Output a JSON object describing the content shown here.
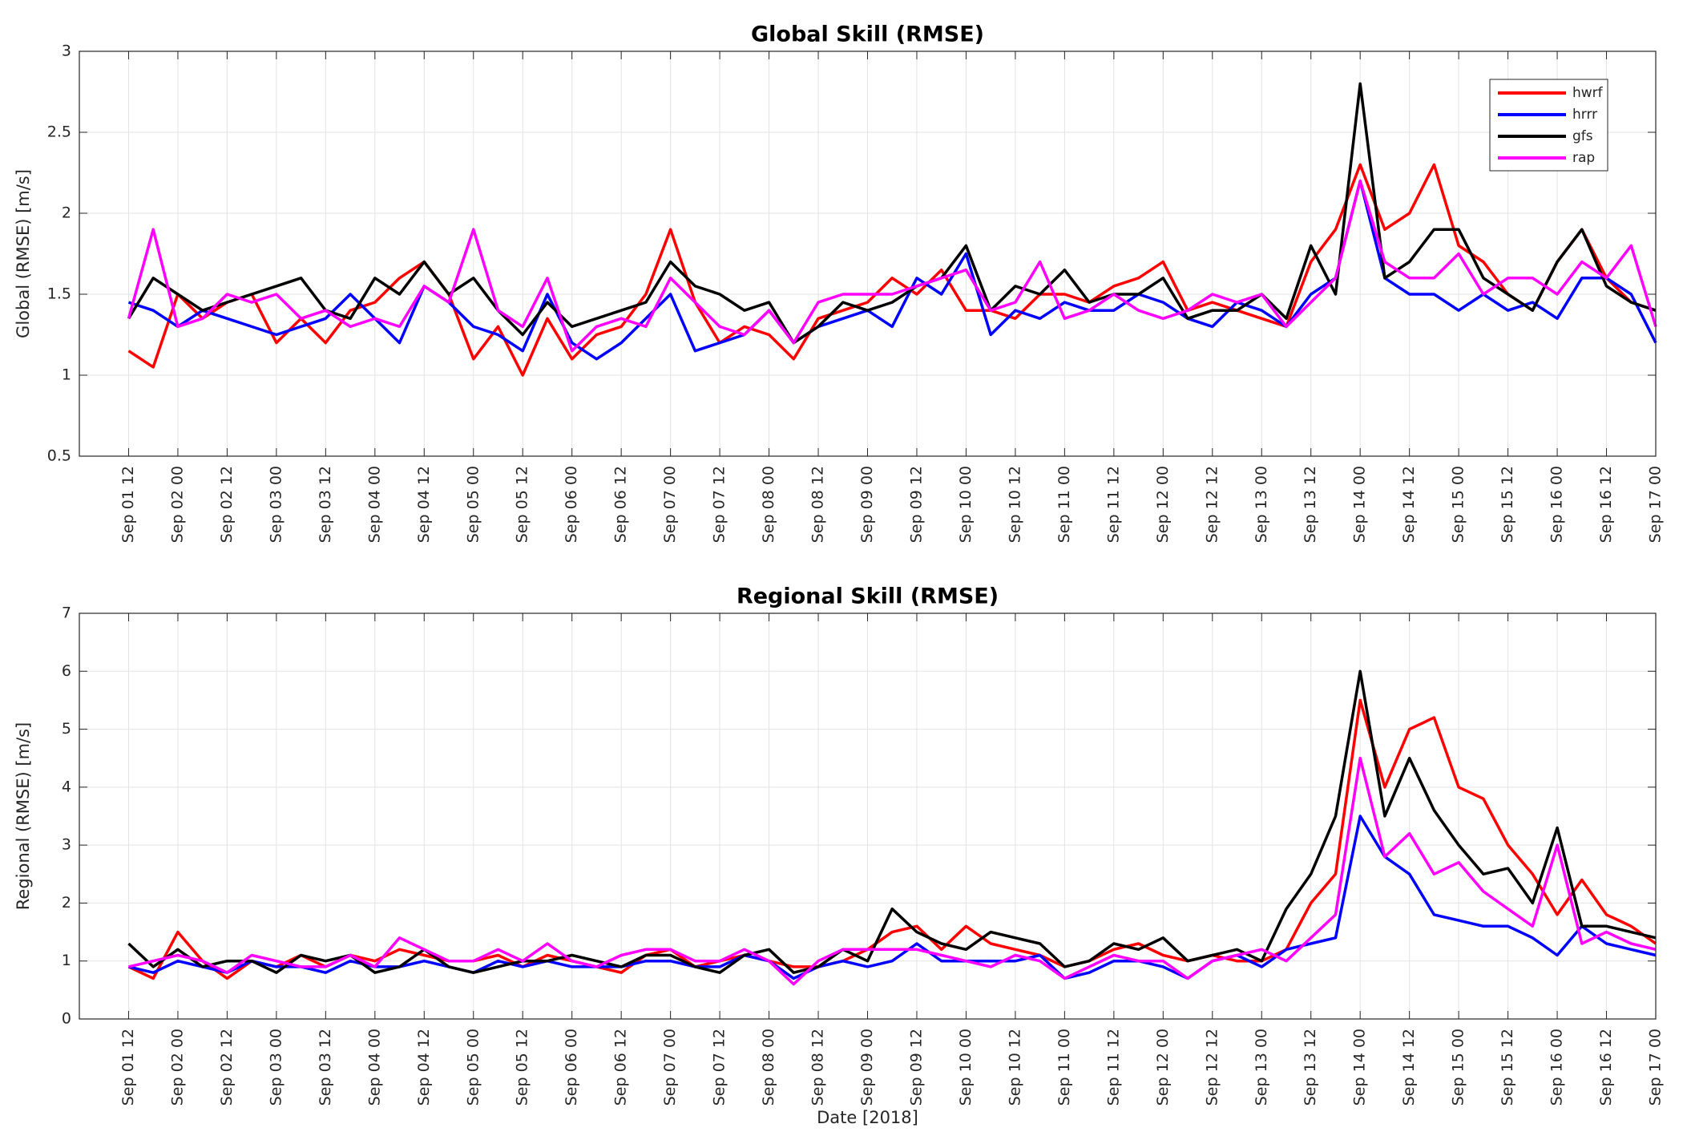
{
  "chart_data": [
    {
      "type": "line",
      "title": "Global Skill (RMSE)",
      "ylabel": "Global (RMSE) [m/s]",
      "x": [
        "2018-09-01T12",
        "2018-09-01T18",
        "2018-09-02T00",
        "2018-09-02T06",
        "2018-09-02T12",
        "2018-09-02T18",
        "2018-09-03T00",
        "2018-09-03T06",
        "2018-09-03T12",
        "2018-09-03T18",
        "2018-09-04T00",
        "2018-09-04T06",
        "2018-09-04T12",
        "2018-09-04T18",
        "2018-09-05T00",
        "2018-09-05T06",
        "2018-09-05T12",
        "2018-09-05T18",
        "2018-09-06T00",
        "2018-09-06T06",
        "2018-09-06T12",
        "2018-09-06T18",
        "2018-09-07T00",
        "2018-09-07T06",
        "2018-09-07T12",
        "2018-09-07T18",
        "2018-09-08T00",
        "2018-09-08T06",
        "2018-09-08T12",
        "2018-09-08T18",
        "2018-09-09T00",
        "2018-09-09T06",
        "2018-09-09T12",
        "2018-09-09T18",
        "2018-09-10T00",
        "2018-09-10T06",
        "2018-09-10T12",
        "2018-09-10T18",
        "2018-09-11T00",
        "2018-09-11T06",
        "2018-09-11T12",
        "2018-09-11T18",
        "2018-09-12T00",
        "2018-09-12T06",
        "2018-09-12T12",
        "2018-09-12T18",
        "2018-09-13T00",
        "2018-09-13T06",
        "2018-09-13T12",
        "2018-09-13T18",
        "2018-09-14T00",
        "2018-09-14T06",
        "2018-09-14T12",
        "2018-09-14T18",
        "2018-09-15T00",
        "2018-09-15T06",
        "2018-09-15T12",
        "2018-09-15T18",
        "2018-09-16T00",
        "2018-09-16T06",
        "2018-09-16T12",
        "2018-09-16T18",
        "2018-09-17T00"
      ],
      "series": [
        {
          "name": "hwrf",
          "color": "#ff0000",
          "values": [
            1.15,
            1.05,
            1.5,
            1.35,
            1.45,
            1.5,
            1.2,
            1.35,
            1.2,
            1.4,
            1.45,
            1.6,
            1.7,
            1.5,
            1.1,
            1.3,
            1.0,
            1.35,
            1.1,
            1.25,
            1.3,
            1.5,
            1.9,
            1.45,
            1.2,
            1.3,
            1.25,
            1.1,
            1.35,
            1.4,
            1.45,
            1.6,
            1.5,
            1.65,
            1.4,
            1.4,
            1.35,
            1.5,
            1.5,
            1.45,
            1.55,
            1.6,
            1.7,
            1.4,
            1.45,
            1.4,
            1.35,
            1.3,
            1.7,
            1.9,
            2.3,
            1.9,
            2.0,
            2.3,
            1.8,
            1.7,
            1.5,
            1.4,
            1.7,
            1.9,
            1.6,
            1.45,
            1.4
          ]
        },
        {
          "name": "hrrr",
          "color": "#0000ff",
          "values": [
            1.45,
            1.4,
            1.3,
            1.4,
            1.35,
            1.3,
            1.25,
            1.3,
            1.35,
            1.5,
            1.35,
            1.2,
            1.55,
            1.45,
            1.3,
            1.25,
            1.15,
            1.5,
            1.2,
            1.1,
            1.2,
            1.35,
            1.5,
            1.15,
            1.2,
            1.25,
            1.4,
            1.2,
            1.3,
            1.35,
            1.4,
            1.3,
            1.6,
            1.5,
            1.75,
            1.25,
            1.4,
            1.35,
            1.45,
            1.4,
            1.4,
            1.5,
            1.45,
            1.35,
            1.3,
            1.45,
            1.4,
            1.3,
            1.5,
            1.6,
            2.2,
            1.6,
            1.5,
            1.5,
            1.4,
            1.5,
            1.4,
            1.45,
            1.35,
            1.6,
            1.6,
            1.5,
            1.2
          ]
        },
        {
          "name": "gfs",
          "color": "#000000",
          "values": [
            1.35,
            1.6,
            1.5,
            1.4,
            1.45,
            1.5,
            1.55,
            1.6,
            1.4,
            1.35,
            1.6,
            1.5,
            1.7,
            1.5,
            1.6,
            1.4,
            1.25,
            1.45,
            1.3,
            1.35,
            1.4,
            1.45,
            1.7,
            1.55,
            1.5,
            1.4,
            1.45,
            1.2,
            1.3,
            1.45,
            1.4,
            1.45,
            1.55,
            1.6,
            1.8,
            1.4,
            1.55,
            1.5,
            1.65,
            1.45,
            1.5,
            1.5,
            1.6,
            1.35,
            1.4,
            1.4,
            1.5,
            1.35,
            1.8,
            1.5,
            2.8,
            1.6,
            1.7,
            1.9,
            1.9,
            1.6,
            1.5,
            1.4,
            1.7,
            1.9,
            1.55,
            1.45,
            1.4
          ]
        },
        {
          "name": "rap",
          "color": "#ff00ff",
          "values": [
            1.35,
            1.9,
            1.3,
            1.35,
            1.5,
            1.45,
            1.5,
            1.35,
            1.4,
            1.3,
            1.35,
            1.3,
            1.55,
            1.45,
            1.9,
            1.4,
            1.3,
            1.6,
            1.15,
            1.3,
            1.35,
            1.3,
            1.6,
            1.45,
            1.3,
            1.25,
            1.4,
            1.2,
            1.45,
            1.5,
            1.5,
            1.5,
            1.55,
            1.6,
            1.65,
            1.4,
            1.45,
            1.7,
            1.35,
            1.4,
            1.5,
            1.4,
            1.35,
            1.4,
            1.5,
            1.45,
            1.5,
            1.3,
            1.45,
            1.6,
            2.2,
            1.7,
            1.6,
            1.6,
            1.75,
            1.5,
            1.6,
            1.6,
            1.5,
            1.7,
            1.6,
            1.8,
            1.3
          ]
        }
      ],
      "xlim": [
        "2018-09-01T00",
        "2018-09-17T00"
      ],
      "xticks": [
        {
          "value": "2018-09-01T12",
          "label": "Sep 01 12"
        },
        {
          "value": "2018-09-02T00",
          "label": "Sep 02 00"
        },
        {
          "value": "2018-09-02T12",
          "label": "Sep 02 12"
        },
        {
          "value": "2018-09-03T00",
          "label": "Sep 03 00"
        },
        {
          "value": "2018-09-03T12",
          "label": "Sep 03 12"
        },
        {
          "value": "2018-09-04T00",
          "label": "Sep 04 00"
        },
        {
          "value": "2018-09-04T12",
          "label": "Sep 04 12"
        },
        {
          "value": "2018-09-05T00",
          "label": "Sep 05 00"
        },
        {
          "value": "2018-09-05T12",
          "label": "Sep 05 12"
        },
        {
          "value": "2018-09-06T00",
          "label": "Sep 06 00"
        },
        {
          "value": "2018-09-06T12",
          "label": "Sep 06 12"
        },
        {
          "value": "2018-09-07T00",
          "label": "Sep 07 00"
        },
        {
          "value": "2018-09-07T12",
          "label": "Sep 07 12"
        },
        {
          "value": "2018-09-08T00",
          "label": "Sep 08 00"
        },
        {
          "value": "2018-09-08T12",
          "label": "Sep 08 12"
        },
        {
          "value": "2018-09-09T00",
          "label": "Sep 09 00"
        },
        {
          "value": "2018-09-09T12",
          "label": "Sep 09 12"
        },
        {
          "value": "2018-09-10T00",
          "label": "Sep 10 00"
        },
        {
          "value": "2018-09-10T12",
          "label": "Sep 10 12"
        },
        {
          "value": "2018-09-11T00",
          "label": "Sep 11 00"
        },
        {
          "value": "2018-09-11T12",
          "label": "Sep 11 12"
        },
        {
          "value": "2018-09-12T00",
          "label": "Sep 12 00"
        },
        {
          "value": "2018-09-12T12",
          "label": "Sep 12 12"
        },
        {
          "value": "2018-09-13T00",
          "label": "Sep 13 00"
        },
        {
          "value": "2018-09-13T12",
          "label": "Sep 13 12"
        },
        {
          "value": "2018-09-14T00",
          "label": "Sep 14 00"
        },
        {
          "value": "2018-09-14T12",
          "label": "Sep 14 12"
        },
        {
          "value": "2018-09-15T00",
          "label": "Sep 15 00"
        },
        {
          "value": "2018-09-15T12",
          "label": "Sep 15 12"
        },
        {
          "value": "2018-09-16T00",
          "label": "Sep 16 00"
        },
        {
          "value": "2018-09-16T12",
          "label": "Sep 16 12"
        },
        {
          "value": "2018-09-17T00",
          "label": "Sep 17 00"
        }
      ],
      "ylim": [
        0.5,
        3
      ],
      "yticks": [
        0.5,
        1,
        1.5,
        2,
        2.5,
        3
      ],
      "grid": true,
      "legend": "upper right"
    },
    {
      "type": "line",
      "title": "Regional Skill (RMSE)",
      "ylabel": "Regional (RMSE) [m/s]",
      "xlabel": "Date [2018]",
      "x": [
        "2018-09-01T12",
        "2018-09-01T18",
        "2018-09-02T00",
        "2018-09-02T06",
        "2018-09-02T12",
        "2018-09-02T18",
        "2018-09-03T00",
        "2018-09-03T06",
        "2018-09-03T12",
        "2018-09-03T18",
        "2018-09-04T00",
        "2018-09-04T06",
        "2018-09-04T12",
        "2018-09-04T18",
        "2018-09-05T00",
        "2018-09-05T06",
        "2018-09-05T12",
        "2018-09-05T18",
        "2018-09-06T00",
        "2018-09-06T06",
        "2018-09-06T12",
        "2018-09-06T18",
        "2018-09-07T00",
        "2018-09-07T06",
        "2018-09-07T12",
        "2018-09-07T18",
        "2018-09-08T00",
        "2018-09-08T06",
        "2018-09-08T12",
        "2018-09-08T18",
        "2018-09-09T00",
        "2018-09-09T06",
        "2018-09-09T12",
        "2018-09-09T18",
        "2018-09-10T00",
        "2018-09-10T06",
        "2018-09-10T12",
        "2018-09-10T18",
        "2018-09-11T00",
        "2018-09-11T06",
        "2018-09-11T12",
        "2018-09-11T18",
        "2018-09-12T00",
        "2018-09-12T06",
        "2018-09-12T12",
        "2018-09-12T18",
        "2018-09-13T00",
        "2018-09-13T06",
        "2018-09-13T12",
        "2018-09-13T18",
        "2018-09-14T00",
        "2018-09-14T06",
        "2018-09-14T12",
        "2018-09-14T18",
        "2018-09-15T00",
        "2018-09-15T06",
        "2018-09-15T12",
        "2018-09-15T18",
        "2018-09-16T00",
        "2018-09-16T06",
        "2018-09-16T12",
        "2018-09-16T18",
        "2018-09-17T00"
      ],
      "series": [
        {
          "name": "hwrf",
          "color": "#ff0000",
          "values": [
            0.9,
            0.7,
            1.5,
            1.0,
            0.7,
            1.0,
            0.9,
            1.1,
            0.9,
            1.1,
            1.0,
            1.2,
            1.1,
            1.0,
            1.0,
            1.1,
            0.9,
            1.1,
            1.0,
            0.9,
            0.8,
            1.1,
            1.2,
            0.9,
            1.0,
            1.1,
            1.0,
            0.9,
            0.9,
            1.0,
            1.2,
            1.5,
            1.6,
            1.2,
            1.6,
            1.3,
            1.2,
            1.1,
            0.9,
            1.0,
            1.2,
            1.3,
            1.1,
            1.0,
            1.1,
            1.0,
            1.0,
            1.2,
            2.0,
            2.5,
            5.5,
            4.0,
            5.0,
            5.2,
            4.0,
            3.8,
            3.0,
            2.5,
            1.8,
            2.4,
            1.8,
            1.6,
            1.3
          ]
        },
        {
          "name": "hrrr",
          "color": "#0000ff",
          "values": [
            0.9,
            0.8,
            1.0,
            0.9,
            0.8,
            1.0,
            0.9,
            0.9,
            0.8,
            1.0,
            0.9,
            0.9,
            1.0,
            0.9,
            0.8,
            1.0,
            0.9,
            1.0,
            0.9,
            0.9,
            0.9,
            1.0,
            1.0,
            0.9,
            0.9,
            1.1,
            1.0,
            0.7,
            0.9,
            1.0,
            0.9,
            1.0,
            1.3,
            1.0,
            1.0,
            1.0,
            1.0,
            1.1,
            0.7,
            0.8,
            1.0,
            1.0,
            0.9,
            0.7,
            1.0,
            1.1,
            0.9,
            1.2,
            1.3,
            1.4,
            3.5,
            2.8,
            2.5,
            1.8,
            1.7,
            1.6,
            1.6,
            1.4,
            1.1,
            1.6,
            1.3,
            1.2,
            1.1
          ]
        },
        {
          "name": "gfs",
          "color": "#000000",
          "values": [
            1.3,
            0.9,
            1.2,
            0.9,
            1.0,
            1.0,
            0.8,
            1.1,
            1.0,
            1.1,
            0.8,
            0.9,
            1.2,
            0.9,
            0.8,
            0.9,
            1.0,
            1.0,
            1.1,
            1.0,
            0.9,
            1.1,
            1.1,
            0.9,
            0.8,
            1.1,
            1.2,
            0.8,
            0.9,
            1.2,
            1.0,
            1.9,
            1.5,
            1.3,
            1.2,
            1.5,
            1.4,
            1.3,
            0.9,
            1.0,
            1.3,
            1.2,
            1.4,
            1.0,
            1.1,
            1.2,
            1.0,
            1.9,
            2.5,
            3.5,
            6.0,
            3.5,
            4.5,
            3.6,
            3.0,
            2.5,
            2.6,
            2.0,
            3.3,
            1.6,
            1.6,
            1.5,
            1.4
          ]
        },
        {
          "name": "rap",
          "color": "#ff00ff",
          "values": [
            0.9,
            1.0,
            1.1,
            1.0,
            0.8,
            1.1,
            1.0,
            0.9,
            0.9,
            1.1,
            0.9,
            1.4,
            1.2,
            1.0,
            1.0,
            1.2,
            1.0,
            1.3,
            1.0,
            0.9,
            1.1,
            1.2,
            1.2,
            1.0,
            1.0,
            1.2,
            1.0,
            0.6,
            1.0,
            1.2,
            1.2,
            1.2,
            1.2,
            1.1,
            1.0,
            0.9,
            1.1,
            1.0,
            0.7,
            0.9,
            1.1,
            1.0,
            1.0,
            0.7,
            1.0,
            1.1,
            1.2,
            1.0,
            1.4,
            1.8,
            4.5,
            2.8,
            3.2,
            2.5,
            2.7,
            2.2,
            1.9,
            1.6,
            3.0,
            1.3,
            1.5,
            1.3,
            1.2
          ]
        }
      ],
      "xlim": [
        "2018-09-01T00",
        "2018-09-17T00"
      ],
      "xticks": [
        {
          "value": "2018-09-01T12",
          "label": "Sep 01 12"
        },
        {
          "value": "2018-09-02T00",
          "label": "Sep 02 00"
        },
        {
          "value": "2018-09-02T12",
          "label": "Sep 02 12"
        },
        {
          "value": "2018-09-03T00",
          "label": "Sep 03 00"
        },
        {
          "value": "2018-09-03T12",
          "label": "Sep 03 12"
        },
        {
          "value": "2018-09-04T00",
          "label": "Sep 04 00"
        },
        {
          "value": "2018-09-04T12",
          "label": "Sep 04 12"
        },
        {
          "value": "2018-09-05T00",
          "label": "Sep 05 00"
        },
        {
          "value": "2018-09-05T12",
          "label": "Sep 05 12"
        },
        {
          "value": "2018-09-06T00",
          "label": "Sep 06 00"
        },
        {
          "value": "2018-09-06T12",
          "label": "Sep 06 12"
        },
        {
          "value": "2018-09-07T00",
          "label": "Sep 07 00"
        },
        {
          "value": "2018-09-07T12",
          "label": "Sep 07 12"
        },
        {
          "value": "2018-09-08T00",
          "label": "Sep 08 00"
        },
        {
          "value": "2018-09-08T12",
          "label": "Sep 08 12"
        },
        {
          "value": "2018-09-09T00",
          "label": "Sep 09 00"
        },
        {
          "value": "2018-09-09T12",
          "label": "Sep 09 12"
        },
        {
          "value": "2018-09-10T00",
          "label": "Sep 10 00"
        },
        {
          "value": "2018-09-10T12",
          "label": "Sep 10 12"
        },
        {
          "value": "2018-09-11T00",
          "label": "Sep 11 00"
        },
        {
          "value": "2018-09-11T12",
          "label": "Sep 11 12"
        },
        {
          "value": "2018-09-12T00",
          "label": "Sep 12 00"
        },
        {
          "value": "2018-09-12T12",
          "label": "Sep 12 12"
        },
        {
          "value": "2018-09-13T00",
          "label": "Sep 13 00"
        },
        {
          "value": "2018-09-13T12",
          "label": "Sep 13 12"
        },
        {
          "value": "2018-09-14T00",
          "label": "Sep 14 00"
        },
        {
          "value": "2018-09-14T12",
          "label": "Sep 14 12"
        },
        {
          "value": "2018-09-15T00",
          "label": "Sep 15 00"
        },
        {
          "value": "2018-09-15T12",
          "label": "Sep 15 12"
        },
        {
          "value": "2018-09-16T00",
          "label": "Sep 16 00"
        },
        {
          "value": "2018-09-16T12",
          "label": "Sep 16 12"
        },
        {
          "value": "2018-09-17T00",
          "label": "Sep 17 00"
        }
      ],
      "ylim": [
        0,
        7
      ],
      "yticks": [
        0,
        1,
        2,
        3,
        4,
        5,
        6,
        7
      ],
      "grid": true
    }
  ]
}
